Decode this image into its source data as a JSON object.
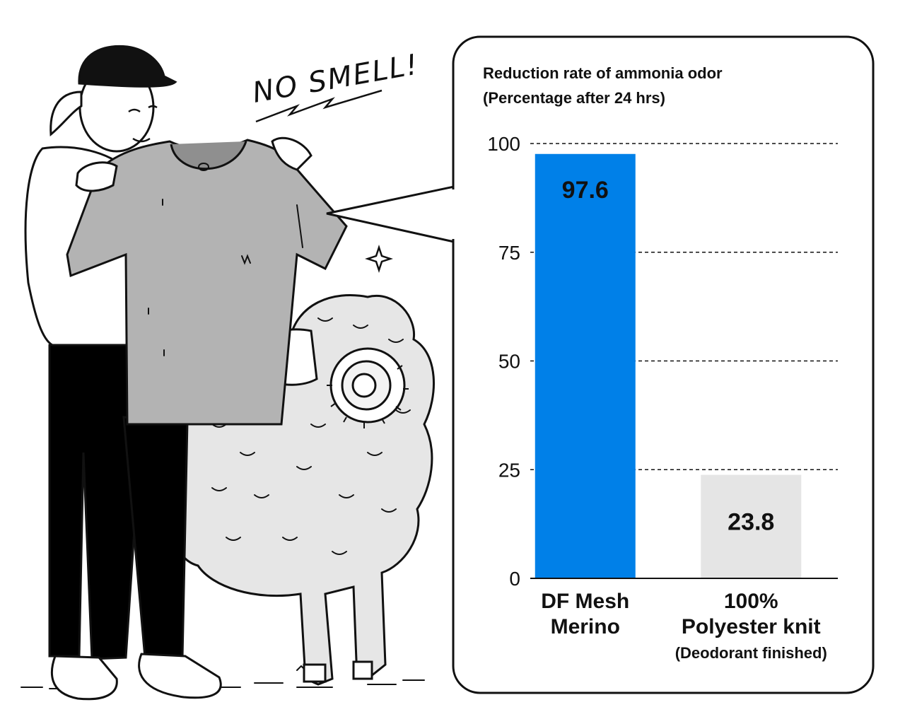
{
  "illustration": {
    "caption": "NO SMELL!",
    "subjects": [
      "person-holding-tshirt",
      "merino-sheep"
    ],
    "colors": {
      "ink": "#111111",
      "shirt": "#b3b3b3",
      "wool": "#e6e6e6",
      "pants": "#000000"
    }
  },
  "chart_data": {
    "type": "bar",
    "title": "Reduction rate of ammonia odor",
    "subtitle": "(Percentage after 24 hrs)",
    "categories": [
      "DF Mesh Merino",
      "100% Polyester knit"
    ],
    "category_lines": [
      [
        "DF Mesh",
        "Merino"
      ],
      [
        "100%",
        "Polyester knit"
      ]
    ],
    "category_notes": [
      "",
      "(Deodorant finished)"
    ],
    "values": [
      97.6,
      23.8
    ],
    "value_labels": [
      "97.6",
      "23.8"
    ],
    "bar_colors": [
      "#0080e8",
      "#e5e5e5"
    ],
    "ylim": [
      0,
      100
    ],
    "yticks": [
      "0",
      "25",
      "50",
      "75",
      "100"
    ],
    "grid": true,
    "grid_style": "dashed"
  }
}
